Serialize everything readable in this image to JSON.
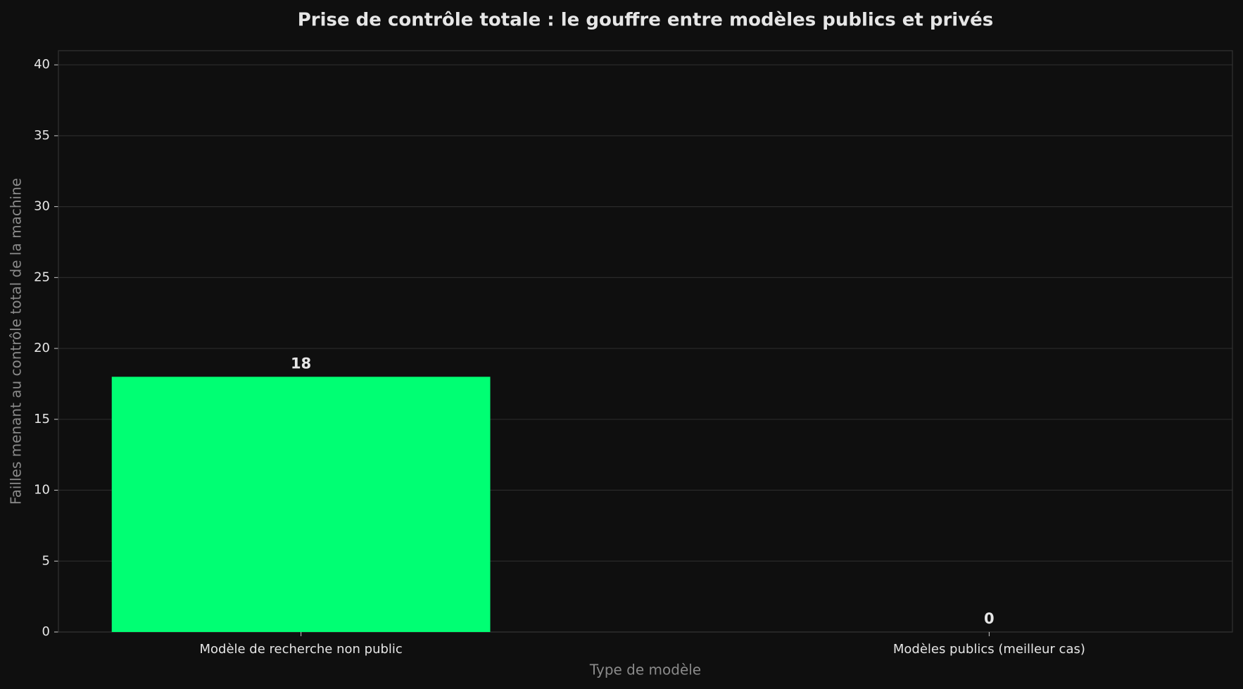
{
  "chart_data": {
    "type": "bar",
    "title": "Prise de contrôle totale : le gouffre entre modèles publics et privés",
    "x_label": "Type de modèle",
    "y_label": "Failles menant au contrôle total de la machine",
    "categories": [
      "Modèle de recherche non public",
      "Modèles publics (meilleur cas)"
    ],
    "values": [
      18,
      0
    ],
    "color": "#00ff73",
    "ylim": [
      0,
      41
    ],
    "yticks": [
      0,
      5,
      10,
      15,
      20,
      25,
      30,
      35,
      40
    ],
    "grid": true
  }
}
